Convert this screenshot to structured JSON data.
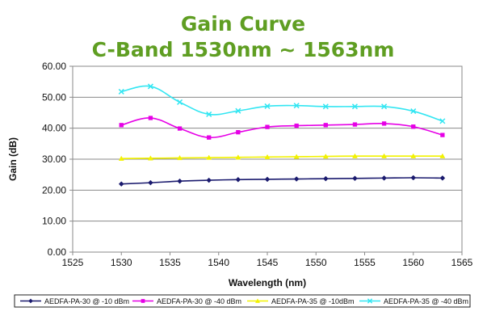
{
  "chart_data": {
    "type": "line",
    "title": "Gain Curve",
    "subtitle": "C-Band 1530nm ~ 1563nm",
    "title_color": "#5f9e22",
    "xlabel": "Wavelength (nm)",
    "ylabel": "Gain (dB)",
    "xlim": [
      1525,
      1565
    ],
    "ylim": [
      0,
      60
    ],
    "x_ticks": [
      1525,
      1530,
      1535,
      1540,
      1545,
      1550,
      1555,
      1560,
      1565
    ],
    "y_ticks": [
      "0.00",
      "10.00",
      "20.00",
      "30.00",
      "40.00",
      "50.00",
      "60.00"
    ],
    "grid": true,
    "legend_position": "bottom",
    "x": [
      1530,
      1533,
      1536,
      1539,
      1542,
      1545,
      1548,
      1551,
      1554,
      1557,
      1560,
      1563
    ],
    "series": [
      {
        "name": "AEDFA-PA-30 @ -10 dBm",
        "color": "#1a1a6e",
        "marker": "diamond",
        "values": [
          22.0,
          22.4,
          22.9,
          23.2,
          23.4,
          23.5,
          23.6,
          23.7,
          23.8,
          23.9,
          24.0,
          23.9
        ]
      },
      {
        "name": "AEDFA-PA-30 @ -40 dBm",
        "color": "#e600e6",
        "marker": "square",
        "values": [
          41.0,
          43.3,
          39.9,
          37.0,
          38.7,
          40.4,
          40.8,
          41.0,
          41.2,
          41.5,
          40.5,
          37.8
        ]
      },
      {
        "name": "AEDFA-PA-35 @ -10dBm",
        "color": "#f2f200",
        "marker": "triangle",
        "values": [
          30.2,
          30.3,
          30.4,
          30.5,
          30.6,
          30.7,
          30.8,
          30.9,
          31.0,
          31.0,
          31.0,
          31.0
        ]
      },
      {
        "name": "AEDFA-PA-35 @ -40 dBm",
        "color": "#33e6f2",
        "marker": "x",
        "values": [
          51.8,
          53.5,
          48.4,
          44.5,
          45.6,
          47.1,
          47.3,
          47.0,
          47.0,
          47.0,
          45.5,
          42.3
        ]
      }
    ]
  }
}
